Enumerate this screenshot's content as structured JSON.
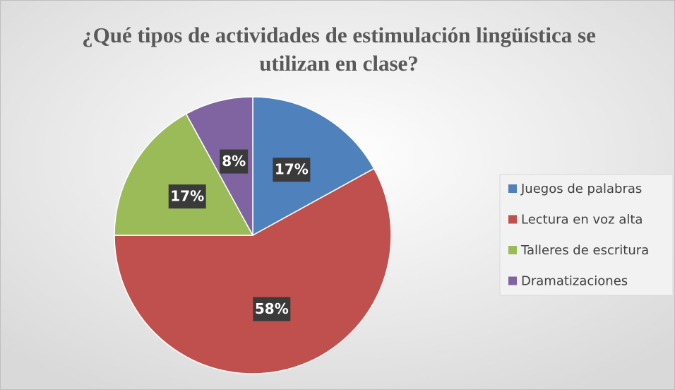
{
  "chart_data": {
    "type": "pie",
    "title": "¿Qué tipos de actividades de estimulación lingüística se utilizan en clase?",
    "categories": [
      "Juegos de palabras",
      "Lectura en voz alta",
      "Talleres de escritura",
      "Dramatizaciones"
    ],
    "values": [
      17,
      58,
      17,
      8
    ],
    "value_labels": [
      "17%",
      "58%",
      "17%",
      "8%"
    ],
    "colors": [
      "#4f81bd",
      "#c0504d",
      "#9bbb59",
      "#8064a2"
    ],
    "legend": "right"
  }
}
